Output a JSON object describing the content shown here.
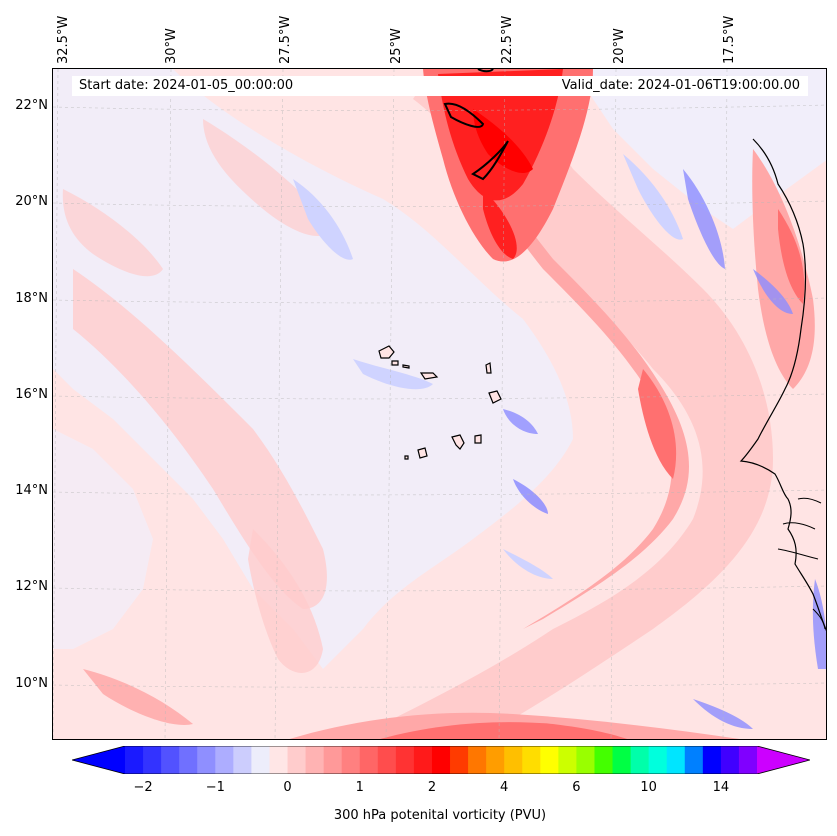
{
  "map": {
    "start_date": "Start date: 2024-01-05_00:00:00",
    "valid_date": "Valid_date: 2024-01-06T19:00:00.00",
    "lon_labels": [
      "32.5°W",
      "30°W",
      "27.5°W",
      "25°W",
      "22.5°W",
      "20°W",
      "17.5°W"
    ],
    "lat_labels": [
      "22°N",
      "20°N",
      "18°N",
      "16°N",
      "14°N",
      "12°N",
      "10°N"
    ],
    "variable": "300 hPa potential vorticity (PVU)",
    "colors": {
      "blue_strong": "#2a2aff",
      "blue_mid": "#8c8cff",
      "blue_light": "#cfd3ff",
      "blue_pale": "#eef0ff",
      "pink_pale": "#ffe4e4",
      "pink_light": "#ffcccc",
      "pink_mid": "#ffa8a8",
      "red_mid": "#ff7070",
      "red_strong": "#ff2020"
    }
  },
  "colorbar": {
    "label": "300 hPa potenital vorticity (PVU)",
    "tick_labels": [
      "−2",
      "−1",
      "0",
      "1",
      "2",
      "4",
      "6",
      "10",
      "14"
    ],
    "tick_values": [
      -2,
      -1,
      0,
      1,
      2,
      4,
      6,
      10,
      14
    ],
    "levels": [
      -2.5,
      -2.25,
      -2,
      -1.75,
      -1.5,
      -1.25,
      -1,
      -0.75,
      -0.5,
      -0.25,
      0,
      0.25,
      0.5,
      0.75,
      1,
      1.25,
      1.5,
      1.75,
      2,
      2.5,
      3,
      3.5,
      4,
      4.5,
      5,
      5.5,
      6,
      7,
      8,
      9,
      10,
      11,
      12,
      13,
      14,
      15
    ],
    "colors": [
      "#0000ff",
      "#1a1aff",
      "#3333ff",
      "#5252ff",
      "#7070ff",
      "#8f8fff",
      "#adadff",
      "#cccdfd",
      "#ededfb",
      "#ffe6e6",
      "#ffcccc",
      "#ffb3b3",
      "#ff9999",
      "#ff8080",
      "#ff6666",
      "#ff4d4d",
      "#ff3333",
      "#ff1a1a",
      "#ff0000",
      "#ff3b00",
      "#ff7700",
      "#ff9d00",
      "#ffbf00",
      "#ffdd00",
      "#ffff00",
      "#ccff00",
      "#99ff00",
      "#44ff00",
      "#00ff44",
      "#00ffaa",
      "#00ffdd",
      "#00e5ff",
      "#0080ff",
      "#0000ff",
      "#4000ff",
      "#8000ff",
      "#cc00ff"
    ]
  }
}
